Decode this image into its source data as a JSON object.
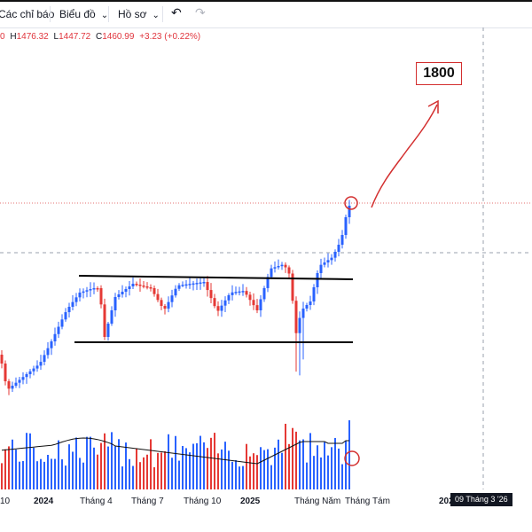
{
  "toolbar": {
    "indicators_label": "Các chỉ báo",
    "charts_label": "Biểu đồ",
    "profiles_label": "Hồ sơ",
    "undo_icon": "undo-icon",
    "redo_icon": "redo-icon"
  },
  "ohlc": {
    "open_value": "0",
    "high_key": "H",
    "high_value": "1476.32",
    "low_key": "L",
    "low_value": "1447.72",
    "close_key": "C",
    "close_value": "1460.99",
    "change": "+3.23 (+0.22%)"
  },
  "annotation": {
    "target_label": "1800"
  },
  "xaxis": {
    "labels": [
      "10",
      "2024",
      "Tháng 4",
      "Tháng 7",
      "Tháng 10",
      "2025",
      "Tháng Năm",
      "Tháng Tám",
      "202"
    ],
    "crosshair_date": "09 Tháng 3 '26"
  },
  "colors": {
    "up": "#2962ff",
    "down": "#e53935",
    "annotation": "#d32f2f",
    "ohlc_value": "#e0353d"
  }
}
